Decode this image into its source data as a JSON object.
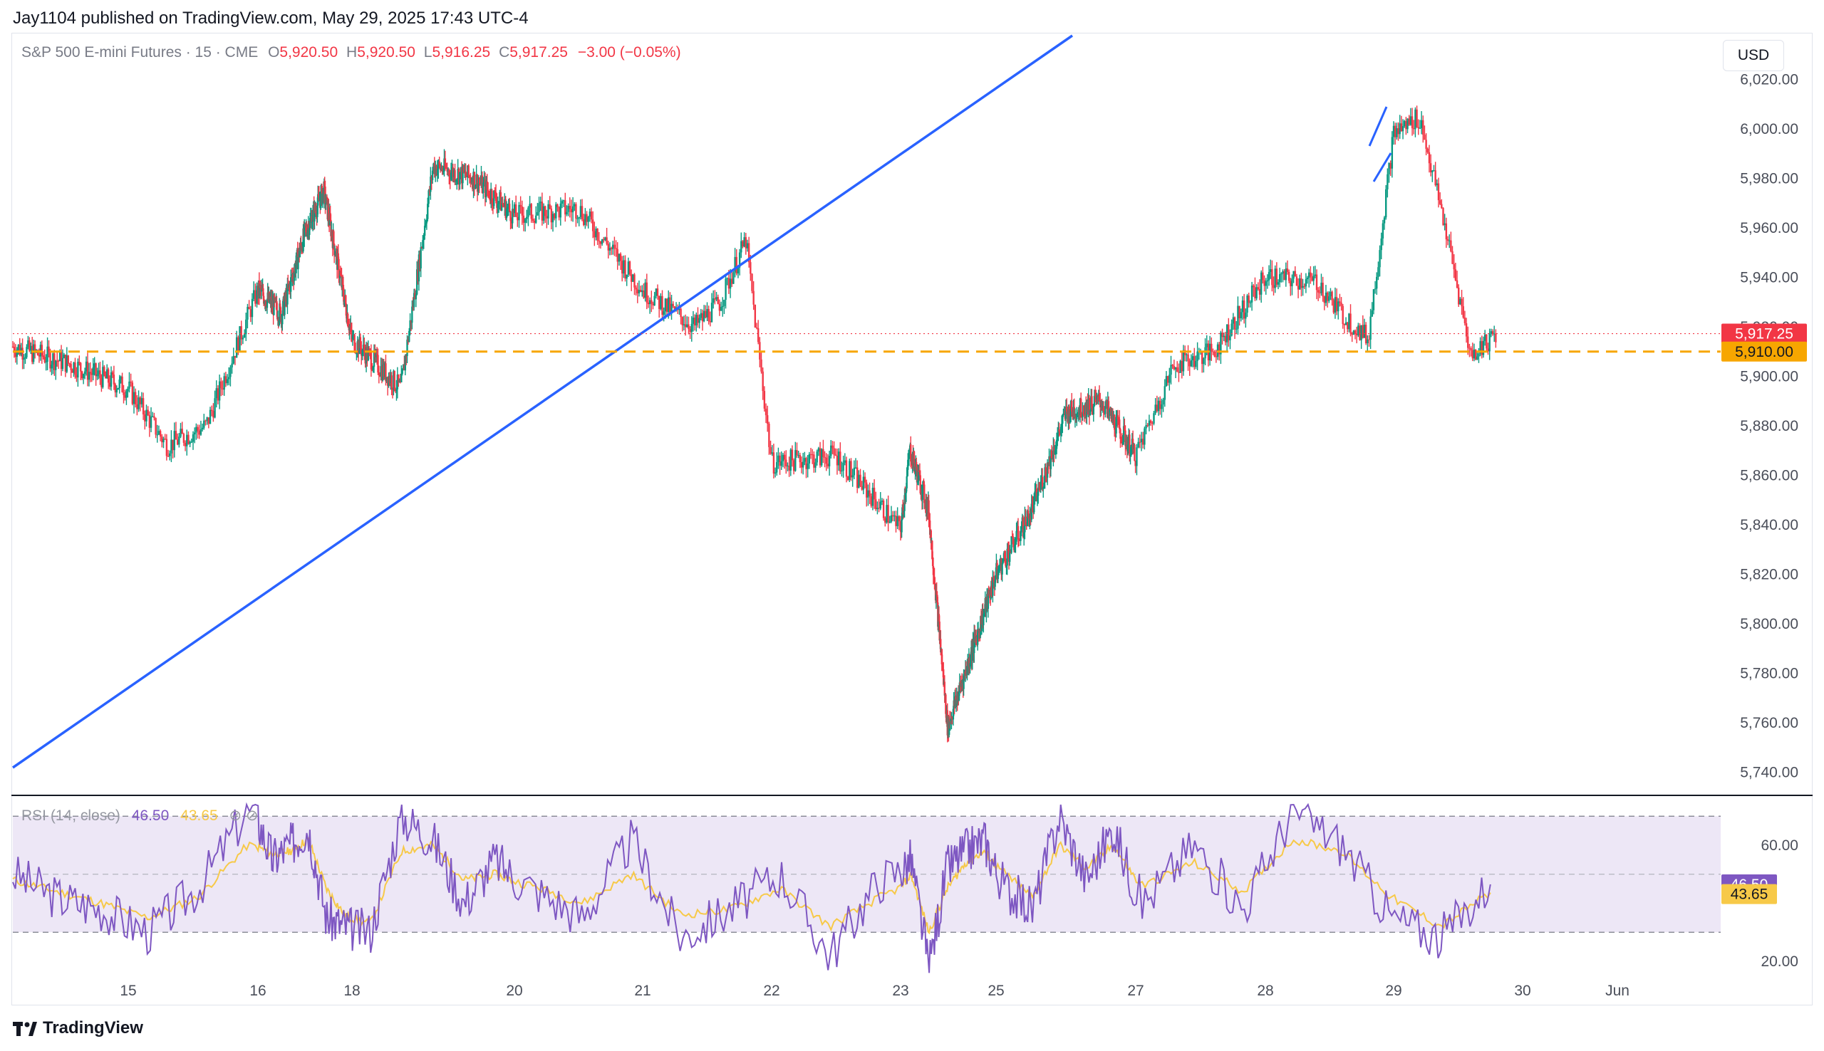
{
  "header": {
    "published_line": "Jay1104 published on TradingView.com, May 29, 2025 17:43 UTC-4"
  },
  "legend": {
    "symbol": "S&P 500 E-mini Futures · 15 · CME",
    "o_label": "O",
    "o_value": "5,920.50",
    "h_label": "H",
    "h_value": "5,920.50",
    "l_label": "L",
    "l_value": "5,916.25",
    "c_label": "C",
    "c_value": "5,917.25",
    "change": "−3.00 (−0.05%)"
  },
  "currency_button": "USD",
  "rsi_legend": {
    "label": "RSI (14, close)",
    "rsi_value": "46.50",
    "ma_value": "43.65"
  },
  "brand": "TradingView",
  "colors": {
    "up": "#089981",
    "down": "#f23645",
    "trendline": "#2962ff",
    "support": "#f7a600",
    "rsi": "#7e57c2",
    "rsi_ma": "#f7c948",
    "rsi_band": "#ede7f6"
  },
  "chart_data": [
    {
      "type": "candlestick",
      "title": "S&P 500 E-mini Futures · 15 · CME",
      "ylim": [
        5730,
        6025
      ],
      "y_ticks": [
        "6,020.00",
        "6,000.00",
        "5,980.00",
        "5,960.00",
        "5,940.00",
        "5,920.00",
        "5,900.00",
        "5,880.00",
        "5,860.00",
        "5,840.00",
        "5,820.00",
        "5,800.00",
        "5,780.00",
        "5,760.00",
        "5,740.00"
      ],
      "x_ticks": [
        "15",
        "16",
        "18",
        "20",
        "21",
        "22",
        "23",
        "25",
        "27",
        "28",
        "29",
        "30",
        "Jun"
      ],
      "series": [
        {
          "name": "price path (approx. closes)",
          "x": [
            "14",
            "14.5",
            "15",
            "15.3",
            "15.6",
            "16",
            "16.5",
            "17",
            "17.4",
            "18",
            "18.3",
            "18.6",
            "19",
            "19.5",
            "20",
            "20.5",
            "21",
            "21.4",
            "21.6",
            "21.8",
            "22",
            "22.5",
            "23",
            "23.2",
            "23.4",
            "23.6",
            "24",
            "25",
            "25.5",
            "26",
            "26.5",
            "27",
            "27.3",
            "27.6",
            "28",
            "28.4",
            "28.6",
            "28.8",
            "29",
            "29.2",
            "29.4",
            "29.6",
            "29.8"
          ],
          "values": [
            5912,
            5905,
            5895,
            5872,
            5880,
            5935,
            5925,
            5958,
            5975,
            5915,
            5905,
            5895,
            5985,
            5980,
            5965,
            5968,
            5935,
            5920,
            5930,
            5955,
            5865,
            5868,
            5838,
            5870,
            5858,
            5845,
            5758,
            5820,
            5845,
            5885,
            5890,
            5868,
            5905,
            5910,
            5940,
            5938,
            5925,
            5915,
            5998,
            6005,
            5960,
            5908,
            5918
          ]
        },
        {
          "name": "current price",
          "values": [
            5917.25
          ]
        },
        {
          "name": "support level",
          "values": [
            5910.0
          ]
        }
      ],
      "annotations": [
        "trendline from lower-left to upper-right",
        "horizontal support line at 5,910.00"
      ]
    },
    {
      "type": "line",
      "title": "RSI (14, close)",
      "ylim": [
        15,
        75
      ],
      "y_ticks": [
        "60.00",
        "20.00"
      ],
      "bands": [
        30,
        70
      ],
      "series": [
        {
          "name": "RSI",
          "values": [
            50,
            42,
            38,
            30,
            45,
            72,
            55,
            60,
            66,
            35,
            32,
            30,
            70,
            62,
            40,
            55,
            45,
            35,
            62,
            28,
            38,
            50,
            22,
            48,
            55,
            18,
            52,
            58,
            62,
            45,
            38,
            70,
            48,
            66,
            40,
            60,
            38,
            72,
            60,
            35,
            28,
            46.5
          ]
        },
        {
          "name": "RSI MA",
          "values": [
            48,
            44,
            40,
            35,
            42,
            60,
            57,
            58,
            62,
            45,
            36,
            33,
            58,
            60,
            48,
            50,
            46,
            40,
            50,
            36,
            38,
            45,
            32,
            42,
            50,
            30,
            45,
            54,
            58,
            50,
            42,
            60,
            52,
            60,
            46,
            54,
            44,
            62,
            58,
            42,
            32,
            43.65
          ]
        }
      ]
    }
  ]
}
